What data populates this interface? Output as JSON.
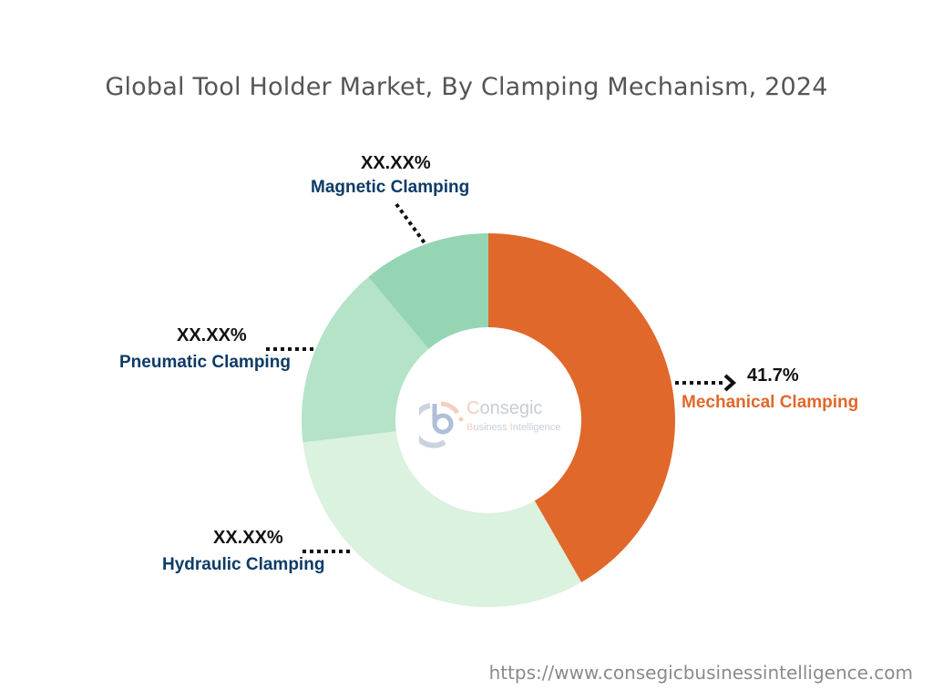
{
  "title": "Global Tool Holder Market, By Clamping Mechanism, 2024",
  "footer_url": "https://www.consegicbusinessintelligence.com",
  "watermark": {
    "brand": "Consegic",
    "tagline": "Business Intelligence"
  },
  "labels": {
    "mechanical": {
      "value": "41.7%",
      "name": "Mechanical Clamping"
    },
    "hydraulic": {
      "value": "XX.XX%",
      "name": "Hydraulic Clamping"
    },
    "pneumatic": {
      "value": "XX.XX%",
      "name": "Pneumatic Clamping"
    },
    "magnetic": {
      "value": "XX.XX%",
      "name": "Magnetic Clamping"
    }
  },
  "colors": {
    "mechanical": "#e0682a",
    "hydraulic": "#daf2de",
    "pneumatic": "#b4e3c7",
    "magnetic": "#95d5b3",
    "label_name": "#0d3b66",
    "title": "#555555"
  },
  "chart_data": {
    "type": "pie",
    "subtype": "donut",
    "title": "Global Tool Holder Market, By Clamping Mechanism, 2024",
    "categories": [
      "Mechanical Clamping",
      "Hydraulic Clamping",
      "Pneumatic Clamping",
      "Magnetic Clamping"
    ],
    "values": [
      41.7,
      31.4,
      15.8,
      11.1
    ],
    "value_labels": [
      "41.7%",
      "XX.XX%",
      "XX.XX%",
      "XX.XX%"
    ],
    "colors": [
      "#e0682a",
      "#daf2de",
      "#b4e3c7",
      "#95d5b3"
    ],
    "start_angle_deg": 0,
    "direction": "clockwise",
    "legend": "none (callout labels)",
    "note": "Only Mechanical Clamping share is labeled (41.7%); other shares estimated from slice angles"
  }
}
